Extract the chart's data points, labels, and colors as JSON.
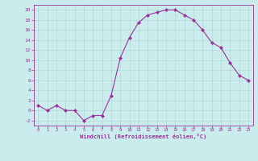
{
  "x": [
    0,
    1,
    2,
    3,
    4,
    5,
    6,
    7,
    8,
    9,
    10,
    11,
    12,
    13,
    14,
    15,
    16,
    17,
    18,
    19,
    20,
    21,
    22,
    23
  ],
  "y": [
    1,
    0,
    1,
    0,
    0,
    -2,
    -1,
    -1,
    3,
    10.5,
    14.5,
    17.5,
    19,
    19.5,
    20,
    20,
    19,
    18,
    16,
    13.5,
    12.5,
    9.5,
    7,
    6
  ],
  "line_color": "#993399",
  "marker": "D",
  "marker_size": 2.0,
  "bg_color": "#cbecec",
  "grid_color": "#b0d8d8",
  "xlabel": "Windchill (Refroidissement éolien,°C)",
  "xlabel_color": "#993399",
  "tick_color": "#993399",
  "spine_color": "#993399",
  "ylim": [
    -3,
    21
  ],
  "xlim": [
    -0.5,
    23.5
  ],
  "yticks": [
    -2,
    0,
    2,
    4,
    6,
    8,
    10,
    12,
    14,
    16,
    18,
    20
  ],
  "xticks": [
    0,
    1,
    2,
    3,
    4,
    5,
    6,
    7,
    8,
    9,
    10,
    11,
    12,
    13,
    14,
    15,
    16,
    17,
    18,
    19,
    20,
    21,
    22,
    23
  ],
  "ytick_labels": [
    "-2",
    "0",
    "2",
    "4",
    "6",
    "8",
    "10",
    "12",
    "14",
    "16",
    "18",
    "20"
  ],
  "xtick_labels": [
    "0",
    "1",
    "2",
    "3",
    "4",
    "5",
    "6",
    "7",
    "8",
    "9",
    "10",
    "11",
    "12",
    "13",
    "14",
    "15",
    "16",
    "17",
    "18",
    "19",
    "20",
    "21",
    "22",
    "23"
  ]
}
